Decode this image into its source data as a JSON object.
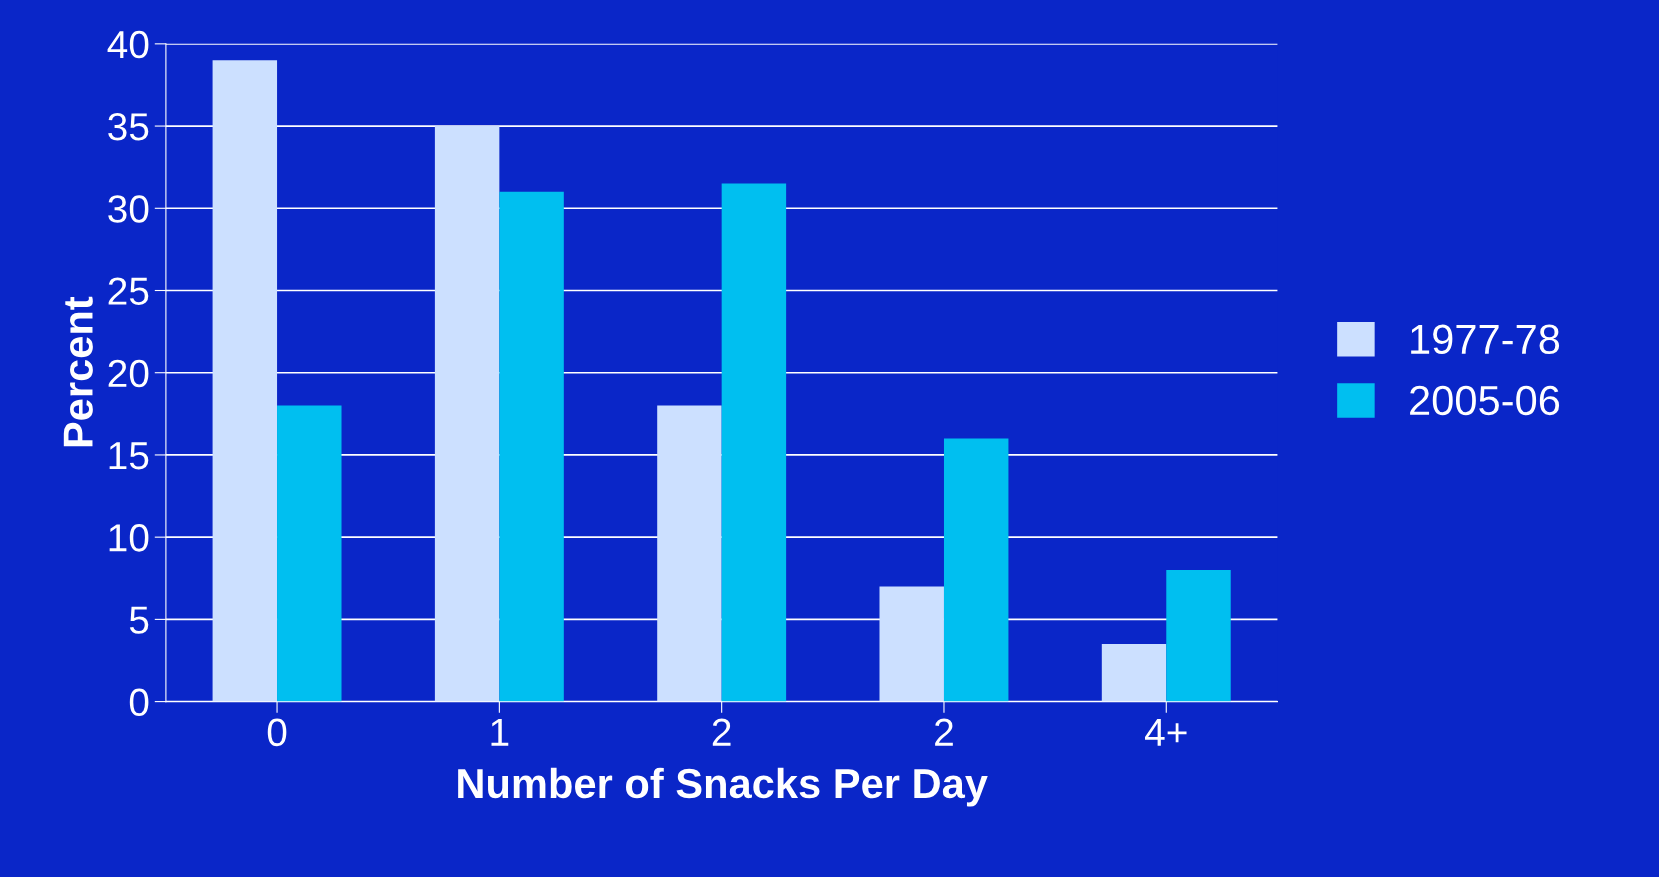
{
  "chart_data": {
    "type": "bar",
    "xlabel": "Number of Snacks Per Day",
    "ylabel": "Percent",
    "categories": [
      "0",
      "1",
      "2",
      "2",
      "4+"
    ],
    "series": [
      {
        "name": "1977-78",
        "color": "#cce0ff",
        "values": [
          39,
          35,
          18,
          7,
          3.5
        ]
      },
      {
        "name": "2005-06",
        "color": "#00bff0",
        "values": [
          18,
          31,
          31.5,
          16,
          8
        ]
      }
    ],
    "ylim": [
      0,
      40
    ],
    "yticks": [
      0,
      5,
      10,
      15,
      20,
      25,
      30,
      35,
      40
    ],
    "grid": "y",
    "legend": "right"
  }
}
